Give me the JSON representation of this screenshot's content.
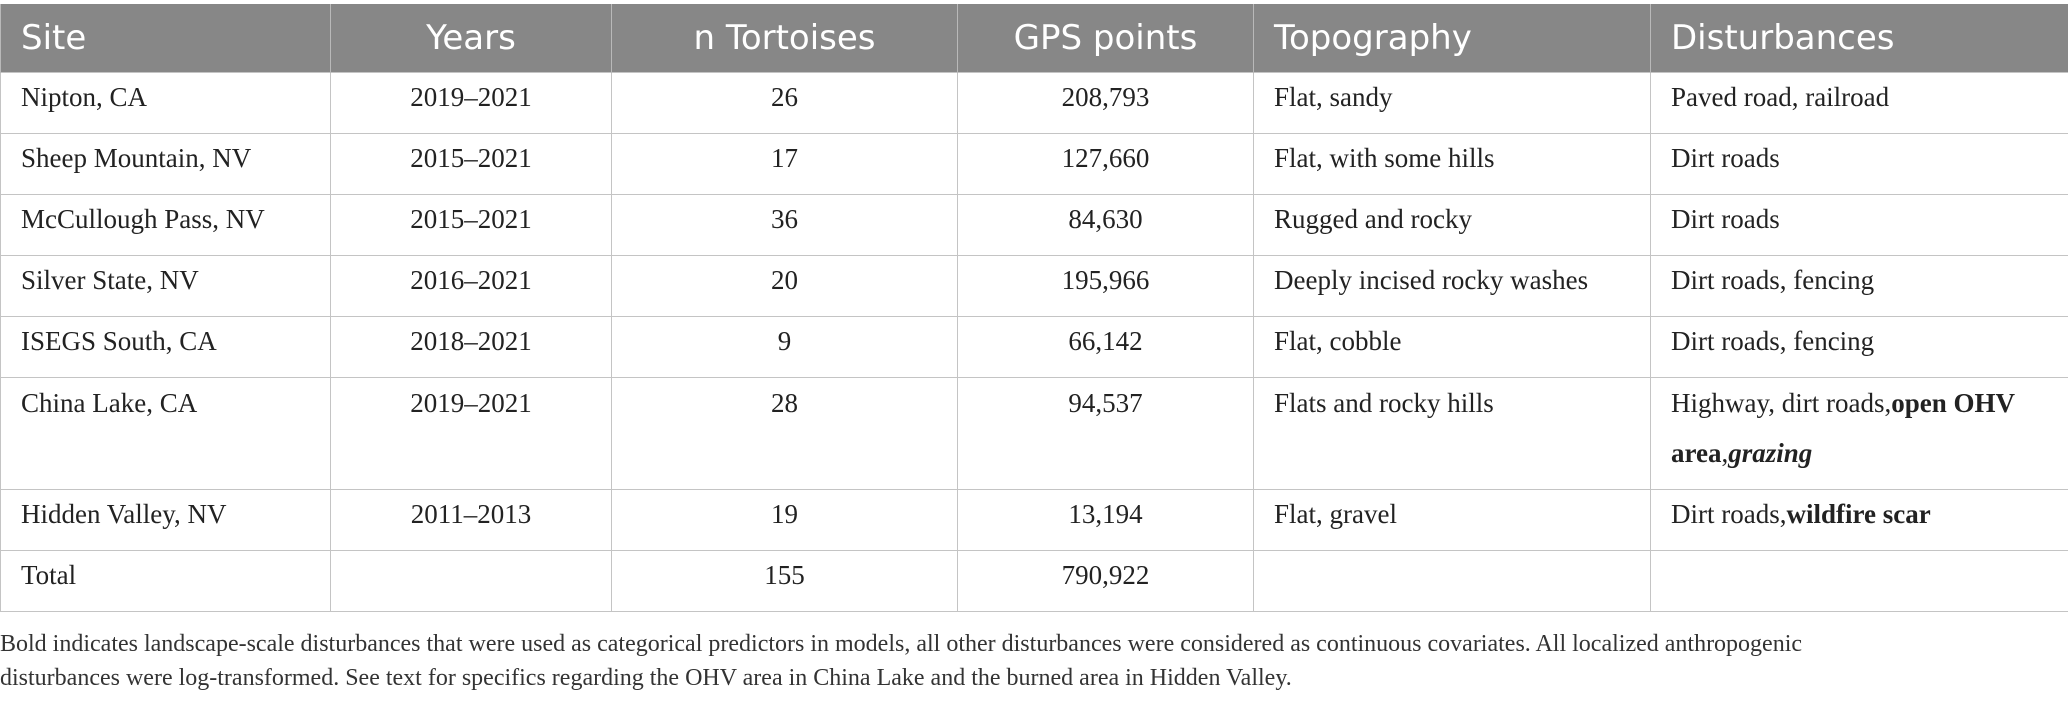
{
  "table": {
    "headers": [
      "Site",
      "Years",
      "n Tortoises",
      "GPS points",
      "Topography",
      "Disturbances"
    ],
    "rows": [
      {
        "site": "Nipton, CA",
        "years": "2019–2021",
        "n": "26",
        "gps": "208,793",
        "topo": "Flat, sandy",
        "dist": [
          {
            "text": "Paved road, railroad",
            "style": "normal"
          }
        ]
      },
      {
        "site": "Sheep Mountain, NV",
        "years": "2015–2021",
        "n": "17",
        "gps": "127,660",
        "topo": "Flat, with some hills",
        "dist": [
          {
            "text": "Dirt roads",
            "style": "normal"
          }
        ]
      },
      {
        "site": "McCullough Pass, NV",
        "years": "2015–2021",
        "n": "36",
        "gps": "84,630",
        "topo": "Rugged and rocky",
        "dist": [
          {
            "text": "Dirt roads",
            "style": "normal"
          }
        ]
      },
      {
        "site": "Silver State, NV",
        "years": "2016–2021",
        "n": "20",
        "gps": "195,966",
        "topo": "Deeply incised rocky washes",
        "dist": [
          {
            "text": "Dirt roads, fencing",
            "style": "normal"
          }
        ]
      },
      {
        "site": "ISEGS South, CA",
        "years": "2018–2021",
        "n": "9",
        "gps": "66,142",
        "topo": "Flat, cobble",
        "dist": [
          {
            "text": "Dirt roads, fencing",
            "style": "normal"
          }
        ]
      },
      {
        "site": "China Lake, CA",
        "years": "2019–2021",
        "n": "28",
        "gps": "94,537",
        "topo": "Flats and rocky hills",
        "dist": [
          {
            "text": "Highway, dirt roads,",
            "style": "normal"
          },
          {
            "text": "open OHV area",
            "style": "bold"
          },
          {
            "text": ",",
            "style": "normal"
          },
          {
            "text": "grazing",
            "style": "bold-italic"
          }
        ]
      },
      {
        "site": "Hidden Valley, NV",
        "years": "2011–2013",
        "n": "19",
        "gps": "13,194",
        "topo": "Flat, gravel",
        "dist": [
          {
            "text": "Dirt roads,",
            "style": "normal"
          },
          {
            "text": "wildfire scar",
            "style": "bold"
          }
        ]
      },
      {
        "site": "Total",
        "years": "",
        "n": "155",
        "gps": "790,922",
        "topo": "",
        "dist": []
      }
    ]
  },
  "footnote": {
    "line1": "Bold indicates landscape-scale disturbances that were used as categorical predictors in models, all other disturbances were considered as continuous covariates. All localized anthropogenic",
    "line2": "disturbances were log-transformed. See text for specifics regarding the OHV area in China Lake and the burned area in Hidden Valley."
  },
  "colors": {
    "header_bg": "#878787",
    "header_text": "#ffffff",
    "border": "#c4c4c4"
  }
}
